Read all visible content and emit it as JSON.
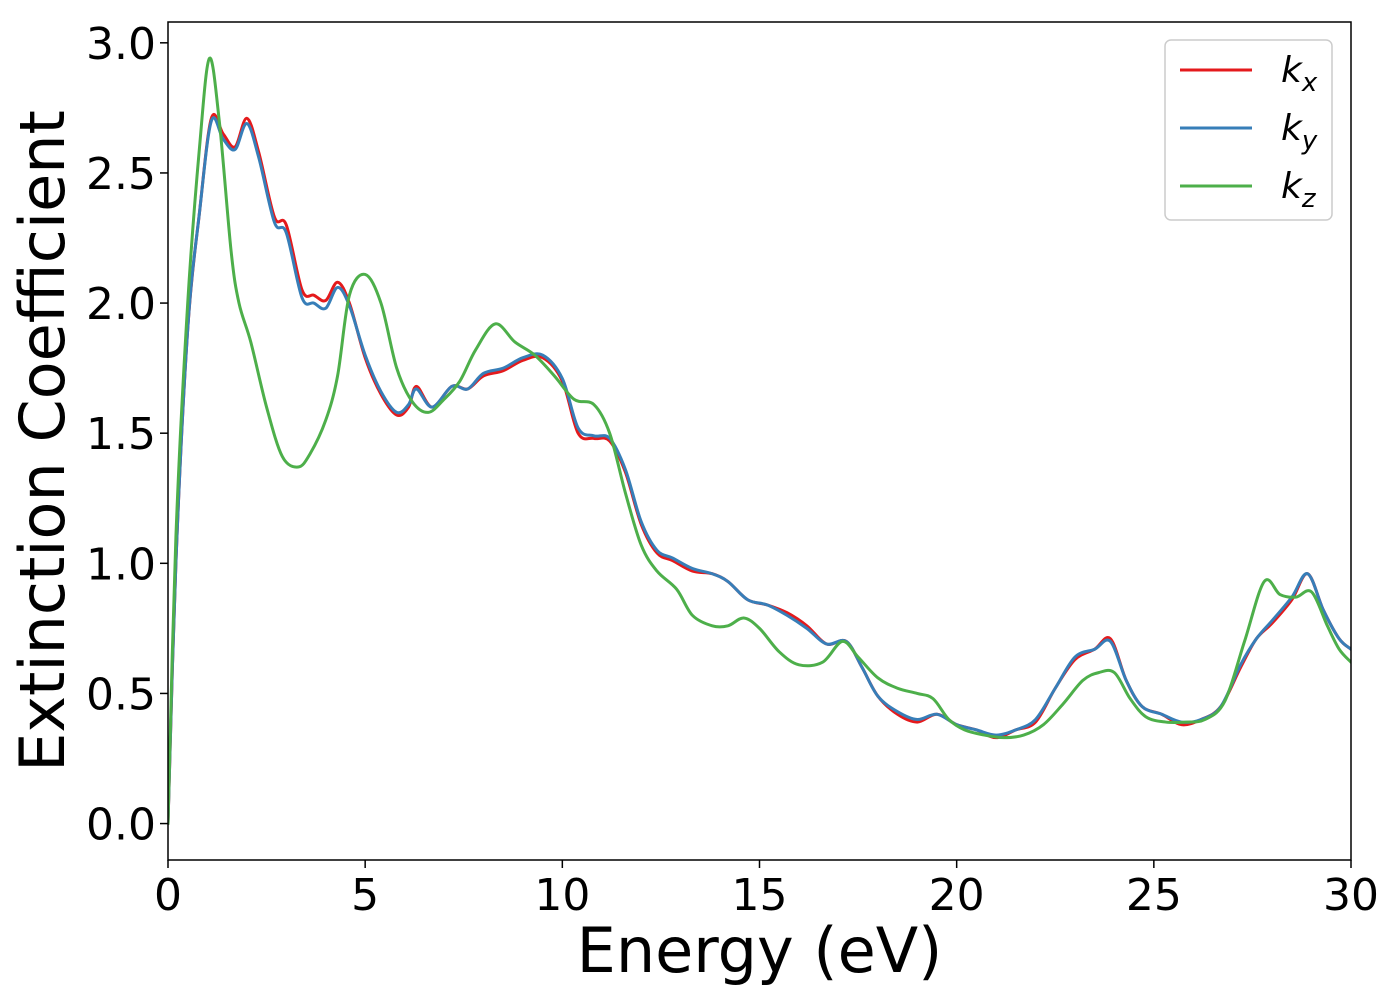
{
  "chart_data": {
    "type": "line",
    "title": "",
    "xlabel": "Energy (eV)",
    "ylabel": "Extinction Coefficient",
    "xlim": [
      0,
      30
    ],
    "ylim": [
      -0.14,
      3.08
    ],
    "xticks": [
      0,
      5,
      10,
      15,
      20,
      25,
      30
    ],
    "xtick_labels": [
      "0",
      "5",
      "10",
      "15",
      "20",
      "25",
      "30"
    ],
    "yticks": [
      0.0,
      0.5,
      1.0,
      1.5,
      2.0,
      2.5,
      3.0
    ],
    "ytick_labels": [
      "0.0",
      "0.5",
      "1.0",
      "1.5",
      "2.0",
      "2.5",
      "3.0"
    ],
    "grid": false,
    "legend_position": "top-right",
    "series": [
      {
        "name": "k",
        "subscript": "x",
        "color": "#e41a1c",
        "points": [
          [
            0,
            0
          ],
          [
            0.2,
            1.0
          ],
          [
            0.5,
            1.9
          ],
          [
            0.8,
            2.35
          ],
          [
            1.1,
            2.71
          ],
          [
            1.4,
            2.65
          ],
          [
            1.7,
            2.6
          ],
          [
            2.0,
            2.71
          ],
          [
            2.3,
            2.58
          ],
          [
            2.7,
            2.33
          ],
          [
            3.0,
            2.3
          ],
          [
            3.4,
            2.05
          ],
          [
            3.7,
            2.03
          ],
          [
            4.0,
            2.01
          ],
          [
            4.3,
            2.08
          ],
          [
            4.6,
            2.0
          ],
          [
            5.0,
            1.79
          ],
          [
            5.4,
            1.65
          ],
          [
            5.8,
            1.57
          ],
          [
            6.1,
            1.6
          ],
          [
            6.3,
            1.68
          ],
          [
            6.7,
            1.6
          ],
          [
            7.2,
            1.68
          ],
          [
            7.6,
            1.67
          ],
          [
            8.0,
            1.72
          ],
          [
            8.5,
            1.74
          ],
          [
            9.0,
            1.78
          ],
          [
            9.5,
            1.79
          ],
          [
            10.0,
            1.7
          ],
          [
            10.4,
            1.5
          ],
          [
            10.8,
            1.48
          ],
          [
            11.2,
            1.47
          ],
          [
            11.6,
            1.35
          ],
          [
            12.0,
            1.15
          ],
          [
            12.4,
            1.04
          ],
          [
            12.8,
            1.01
          ],
          [
            13.3,
            0.97
          ],
          [
            13.8,
            0.96
          ],
          [
            14.2,
            0.93
          ],
          [
            14.7,
            0.86
          ],
          [
            15.2,
            0.84
          ],
          [
            15.7,
            0.81
          ],
          [
            16.2,
            0.76
          ],
          [
            16.7,
            0.69
          ],
          [
            17.2,
            0.7
          ],
          [
            17.6,
            0.6
          ],
          [
            18.0,
            0.49
          ],
          [
            18.5,
            0.42
          ],
          [
            19.0,
            0.39
          ],
          [
            19.5,
            0.42
          ],
          [
            20.0,
            0.38
          ],
          [
            20.5,
            0.36
          ],
          [
            21.0,
            0.33
          ],
          [
            21.5,
            0.36
          ],
          [
            22.0,
            0.39
          ],
          [
            22.5,
            0.52
          ],
          [
            23.0,
            0.63
          ],
          [
            23.5,
            0.67
          ],
          [
            23.9,
            0.71
          ],
          [
            24.3,
            0.55
          ],
          [
            24.7,
            0.45
          ],
          [
            25.2,
            0.42
          ],
          [
            25.7,
            0.38
          ],
          [
            26.2,
            0.4
          ],
          [
            26.7,
            0.45
          ],
          [
            27.2,
            0.6
          ],
          [
            27.6,
            0.71
          ],
          [
            28.0,
            0.77
          ],
          [
            28.5,
            0.86
          ],
          [
            28.9,
            0.96
          ],
          [
            29.3,
            0.82
          ],
          [
            29.7,
            0.71
          ],
          [
            30.0,
            0.67
          ]
        ]
      },
      {
        "name": "k",
        "subscript": "y",
        "color": "#377eb8",
        "points": [
          [
            0,
            0
          ],
          [
            0.2,
            1.0
          ],
          [
            0.5,
            1.9
          ],
          [
            0.8,
            2.35
          ],
          [
            1.1,
            2.7
          ],
          [
            1.4,
            2.63
          ],
          [
            1.7,
            2.59
          ],
          [
            2.0,
            2.69
          ],
          [
            2.3,
            2.56
          ],
          [
            2.7,
            2.31
          ],
          [
            3.0,
            2.27
          ],
          [
            3.4,
            2.02
          ],
          [
            3.7,
            2.0
          ],
          [
            4.0,
            1.98
          ],
          [
            4.3,
            2.06
          ],
          [
            4.6,
            1.99
          ],
          [
            5.0,
            1.8
          ],
          [
            5.4,
            1.66
          ],
          [
            5.8,
            1.58
          ],
          [
            6.1,
            1.61
          ],
          [
            6.3,
            1.67
          ],
          [
            6.7,
            1.6
          ],
          [
            7.2,
            1.68
          ],
          [
            7.6,
            1.67
          ],
          [
            8.0,
            1.73
          ],
          [
            8.5,
            1.75
          ],
          [
            9.0,
            1.79
          ],
          [
            9.5,
            1.8
          ],
          [
            10.0,
            1.71
          ],
          [
            10.4,
            1.52
          ],
          [
            10.8,
            1.49
          ],
          [
            11.2,
            1.48
          ],
          [
            11.6,
            1.36
          ],
          [
            12.0,
            1.16
          ],
          [
            12.4,
            1.05
          ],
          [
            12.8,
            1.02
          ],
          [
            13.3,
            0.98
          ],
          [
            13.8,
            0.96
          ],
          [
            14.2,
            0.93
          ],
          [
            14.7,
            0.86
          ],
          [
            15.2,
            0.84
          ],
          [
            15.7,
            0.8
          ],
          [
            16.2,
            0.75
          ],
          [
            16.7,
            0.69
          ],
          [
            17.2,
            0.7
          ],
          [
            17.6,
            0.6
          ],
          [
            18.0,
            0.49
          ],
          [
            18.5,
            0.43
          ],
          [
            19.0,
            0.4
          ],
          [
            19.5,
            0.42
          ],
          [
            20.0,
            0.38
          ],
          [
            20.5,
            0.36
          ],
          [
            21.0,
            0.34
          ],
          [
            21.5,
            0.36
          ],
          [
            22.0,
            0.4
          ],
          [
            22.5,
            0.52
          ],
          [
            23.0,
            0.64
          ],
          [
            23.5,
            0.67
          ],
          [
            23.9,
            0.7
          ],
          [
            24.3,
            0.55
          ],
          [
            24.7,
            0.45
          ],
          [
            25.2,
            0.42
          ],
          [
            25.7,
            0.39
          ],
          [
            26.2,
            0.4
          ],
          [
            26.7,
            0.45
          ],
          [
            27.2,
            0.61
          ],
          [
            27.6,
            0.71
          ],
          [
            28.0,
            0.78
          ],
          [
            28.5,
            0.87
          ],
          [
            28.9,
            0.96
          ],
          [
            29.3,
            0.82
          ],
          [
            29.7,
            0.71
          ],
          [
            30.0,
            0.67
          ]
        ]
      },
      {
        "name": "k",
        "subscript": "z",
        "color": "#4daf4a",
        "points": [
          [
            0,
            0
          ],
          [
            0.2,
            1.1
          ],
          [
            0.5,
            2.0
          ],
          [
            0.8,
            2.6
          ],
          [
            1.05,
            2.94
          ],
          [
            1.3,
            2.7
          ],
          [
            1.6,
            2.2
          ],
          [
            1.8,
            2.0
          ],
          [
            2.1,
            1.85
          ],
          [
            2.5,
            1.6
          ],
          [
            2.9,
            1.41
          ],
          [
            3.3,
            1.37
          ],
          [
            3.6,
            1.42
          ],
          [
            4.0,
            1.55
          ],
          [
            4.3,
            1.72
          ],
          [
            4.6,
            2.03
          ],
          [
            5.0,
            2.11
          ],
          [
            5.4,
            2.0
          ],
          [
            5.8,
            1.75
          ],
          [
            6.2,
            1.62
          ],
          [
            6.6,
            1.58
          ],
          [
            7.0,
            1.63
          ],
          [
            7.4,
            1.7
          ],
          [
            7.8,
            1.82
          ],
          [
            8.3,
            1.92
          ],
          [
            8.8,
            1.85
          ],
          [
            9.3,
            1.8
          ],
          [
            9.8,
            1.72
          ],
          [
            10.3,
            1.63
          ],
          [
            10.8,
            1.61
          ],
          [
            11.2,
            1.5
          ],
          [
            11.6,
            1.27
          ],
          [
            12.0,
            1.07
          ],
          [
            12.4,
            0.97
          ],
          [
            12.9,
            0.9
          ],
          [
            13.3,
            0.8
          ],
          [
            13.8,
            0.76
          ],
          [
            14.2,
            0.76
          ],
          [
            14.6,
            0.79
          ],
          [
            15.0,
            0.75
          ],
          [
            15.5,
            0.66
          ],
          [
            16.0,
            0.61
          ],
          [
            16.6,
            0.62
          ],
          [
            17.1,
            0.7
          ],
          [
            17.5,
            0.64
          ],
          [
            18.0,
            0.56
          ],
          [
            18.5,
            0.52
          ],
          [
            19.0,
            0.5
          ],
          [
            19.4,
            0.48
          ],
          [
            19.8,
            0.4
          ],
          [
            20.2,
            0.36
          ],
          [
            20.7,
            0.34
          ],
          [
            21.2,
            0.33
          ],
          [
            21.7,
            0.34
          ],
          [
            22.2,
            0.38
          ],
          [
            22.7,
            0.46
          ],
          [
            23.2,
            0.55
          ],
          [
            23.6,
            0.58
          ],
          [
            24.0,
            0.58
          ],
          [
            24.4,
            0.48
          ],
          [
            24.8,
            0.41
          ],
          [
            25.3,
            0.39
          ],
          [
            25.8,
            0.39
          ],
          [
            26.3,
            0.4
          ],
          [
            26.8,
            0.47
          ],
          [
            27.3,
            0.7
          ],
          [
            27.8,
            0.93
          ],
          [
            28.2,
            0.88
          ],
          [
            28.6,
            0.87
          ],
          [
            29.0,
            0.89
          ],
          [
            29.4,
            0.76
          ],
          [
            29.7,
            0.67
          ],
          [
            30.0,
            0.62
          ]
        ]
      }
    ]
  }
}
